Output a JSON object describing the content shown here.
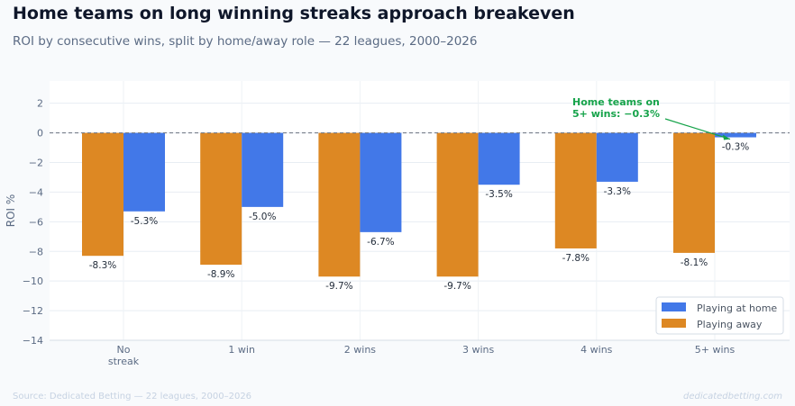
{
  "title": "Home teams on long winning streaks approach breakeven",
  "subtitle": "ROI by consecutive wins, split by home/away role — 22 leagues, 2000–2026",
  "footer": {
    "source": "Source: Dedicated Betting — 22 leagues, 2000–2026",
    "brand": "dedicatedbetting.com"
  },
  "colors": {
    "home": "#4278e8",
    "away": "#dd8823",
    "annotation": "#16a34a"
  },
  "chart_data": {
    "type": "bar",
    "categories": [
      [
        "No",
        "streak"
      ],
      [
        "1 win"
      ],
      [
        "2 wins"
      ],
      [
        "3 wins"
      ],
      [
        "4 wins"
      ],
      [
        "5+ wins"
      ]
    ],
    "series": [
      {
        "name": "Playing away",
        "values": [
          -8.3,
          -8.9,
          -9.7,
          -9.7,
          -7.8,
          -8.1
        ],
        "labels": [
          "-8.3%",
          "-8.9%",
          "-9.7%",
          "-9.7%",
          "-7.8%",
          "-8.1%"
        ]
      },
      {
        "name": "Playing at home",
        "values": [
          -5.3,
          -5.0,
          -6.7,
          -3.5,
          -3.3,
          -0.3
        ],
        "labels": [
          "-5.3%",
          "-5.0%",
          "-6.7%",
          "-3.5%",
          "-3.3%",
          "-0.3%"
        ]
      }
    ],
    "ylabel": "ROI %",
    "xlabel": "",
    "ylim": [
      -14,
      3.5
    ],
    "yticks": [
      2,
      0,
      -2,
      -4,
      -6,
      -8,
      -10,
      -12,
      -14
    ],
    "ytick_labels": [
      "2",
      "0",
      "−2",
      "−4",
      "−6",
      "−8",
      "−10",
      "−12",
      "−14"
    ],
    "reference_line": 0,
    "grid": true,
    "legend": {
      "position": "bottom-right",
      "entries": [
        "Playing at home",
        "Playing away"
      ]
    },
    "annotation": {
      "lines": [
        "Home teams on",
        "5+ wins: −0.3%"
      ],
      "category_index": 5,
      "value": -0.3
    }
  }
}
